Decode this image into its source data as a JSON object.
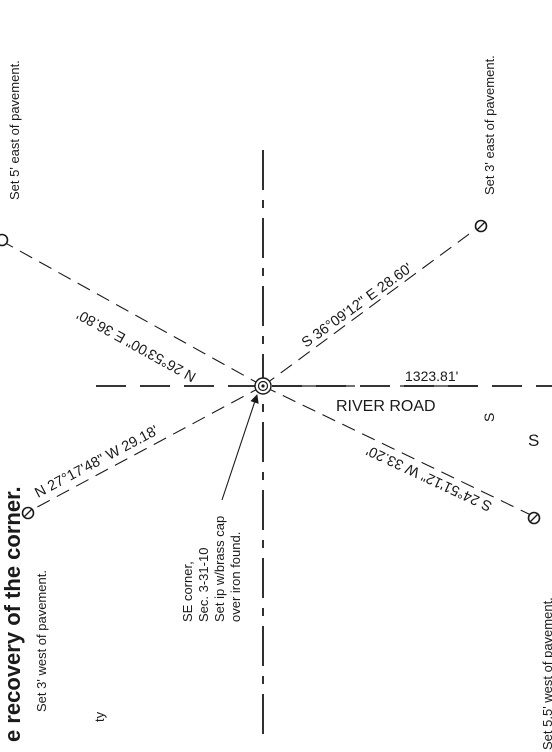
{
  "labels": {
    "title_fragment": "e recovery of the corner.",
    "ne_note": "Set 3' east of pavement.",
    "top_note": "Set 5' east of pavement.",
    "nw_note": "Set 3' west of pavement.",
    "sw_note": "Set 5.5' west of pavement.",
    "b_ne": "S 36°09'12\" E 28.60'",
    "b_nw": "N 26°53'00\" E 36.80'",
    "b_sw": "N 27°17'48\" W 29.18'",
    "b_se": "S 24°51'12\" W 33.20'",
    "distance": "1323.81'",
    "road": "RIVER ROAD",
    "s_cut": "S",
    "s_cut2": "S",
    "corner_1": "SE corner,",
    "corner_2": "Sec. 3-31-10",
    "corner_3": "Set ip w/brass cap",
    "corner_4": "over iron found.",
    "ty_fragment": "ty"
  }
}
